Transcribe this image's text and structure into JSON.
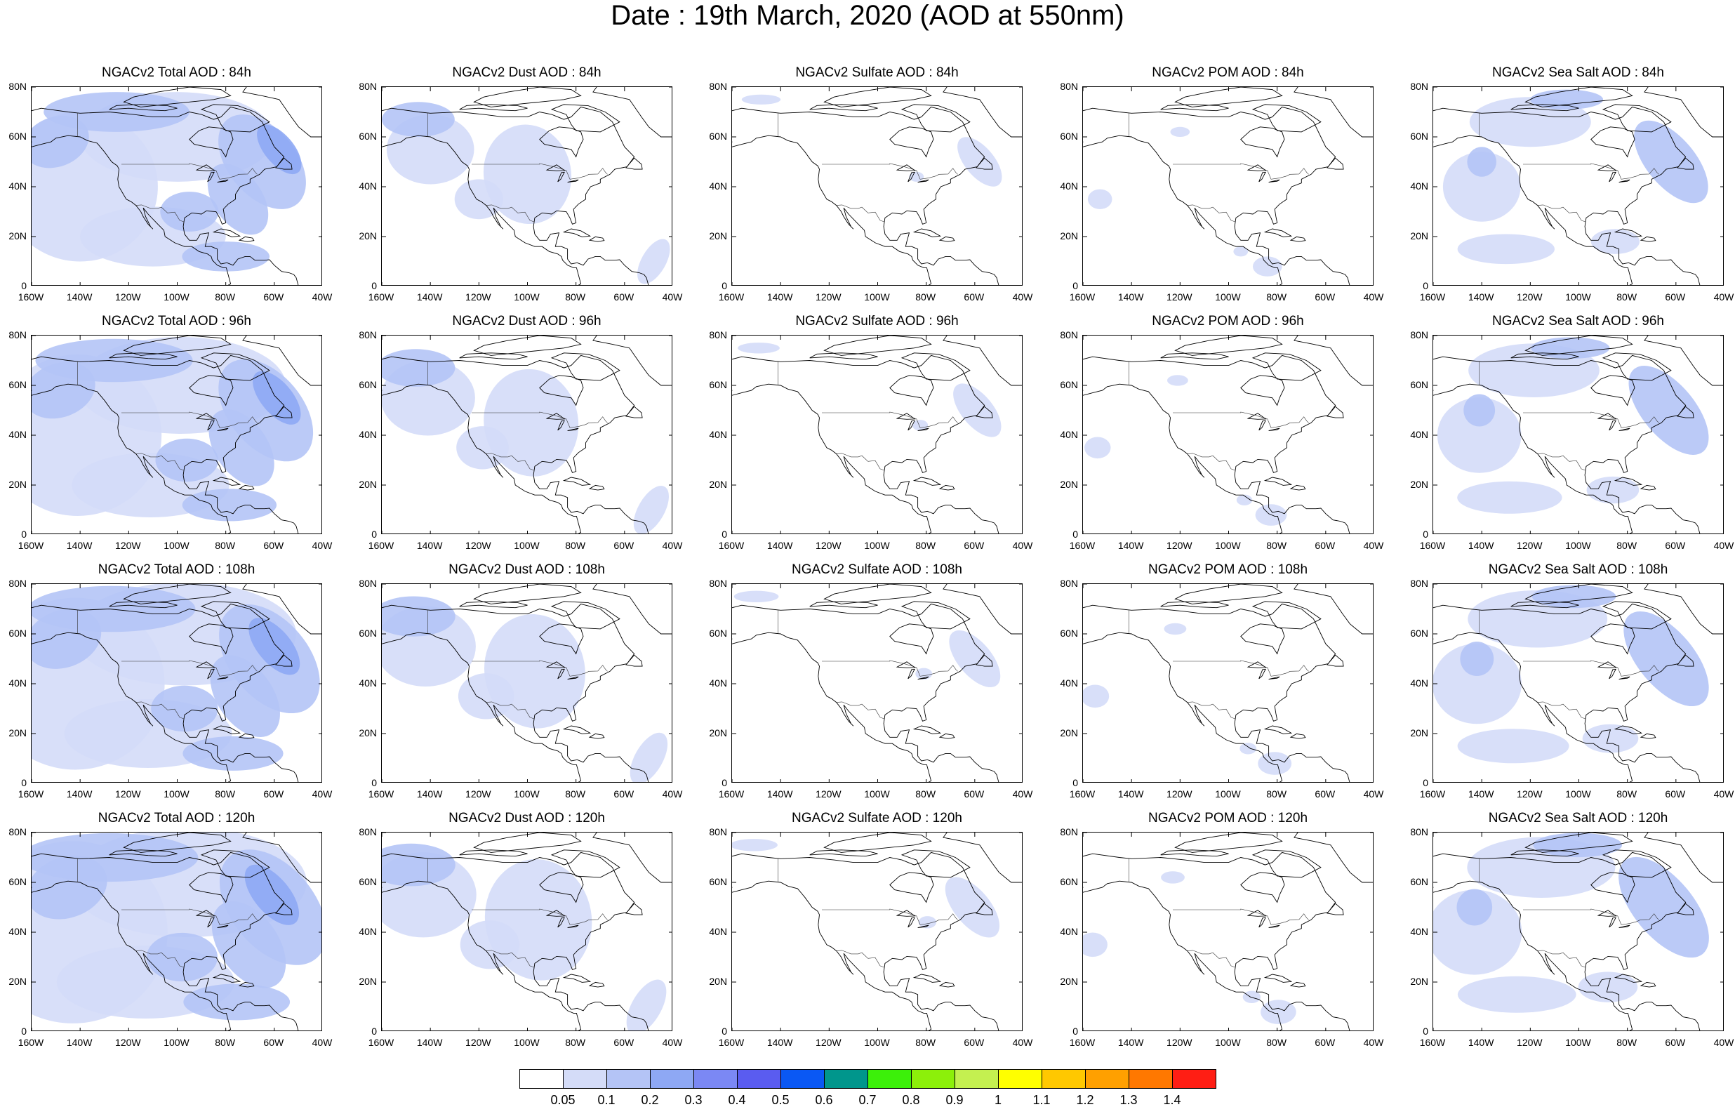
{
  "title": "Date : 19th March, 2020 (AOD at 550nm)",
  "columns": [
    {
      "species": "total",
      "label": "NGACv2 Total AOD"
    },
    {
      "species": "dust",
      "label": "NGACv2 Dust AOD"
    },
    {
      "species": "sulfate",
      "label": "NGACv2 Sulfate AOD"
    },
    {
      "species": "pom",
      "label": "NGACv2 POM AOD"
    },
    {
      "species": "seasalt",
      "label": "NGACv2 Sea Salt AOD"
    }
  ],
  "panel_titles": [
    [
      "NGACv2 Total AOD : 84h",
      "NGACv2 Dust AOD : 84h",
      "NGACv2 Sulfate AOD : 84h",
      "NGACv2 POM AOD : 84h",
      "NGACv2 Sea Salt AOD : 84h"
    ],
    [
      "NGACv2 Total AOD : 96h",
      "NGACv2 Dust AOD : 96h",
      "NGACv2 Sulfate AOD : 96h",
      "NGACv2 POM AOD : 96h",
      "NGACv2 Sea Salt AOD : 96h"
    ],
    [
      "NGACv2 Total AOD : 108h",
      "NGACv2 Dust AOD : 108h",
      "NGACv2 Sulfate AOD : 108h",
      "NGACv2 POM AOD : 108h",
      "NGACv2 Sea Salt AOD : 108h"
    ],
    [
      "NGACv2 Total AOD : 120h",
      "NGACv2 Dust AOD : 120h",
      "NGACv2 Sulfate AOD : 120h",
      "NGACv2 POM AOD : 120h",
      "NGACv2 Sea Salt  AOD : 120h"
    ]
  ],
  "forecast_hours": [
    "84h",
    "96h",
    "108h",
    "120h"
  ],
  "lat_ticks": [
    "80N",
    "60N",
    "40N",
    "20N",
    "0"
  ],
  "lon_ticks": [
    "160W",
    "140W",
    "120W",
    "100W",
    "80W",
    "60W",
    "40W"
  ],
  "map_extent": {
    "lon": [
      -160,
      -40
    ],
    "lat": [
      0,
      80
    ]
  },
  "colorbar": {
    "labels": [
      "0.05",
      "0.1",
      "0.2",
      "0.3",
      "0.4",
      "0.5",
      "0.6",
      "0.7",
      "0.8",
      "0.9",
      "1",
      "1.1",
      "1.2",
      "1.3",
      "1.4"
    ],
    "colors": [
      "#ffffff",
      "#d4dcf8",
      "#b4c4f6",
      "#8ea8f4",
      "#7b88f4",
      "#5a5cf0",
      "#0a58f4",
      "#00968c",
      "#3cf00a",
      "#8cf00a",
      "#c4f050",
      "#ffff00",
      "#ffc800",
      "#ffa000",
      "#ff7800",
      "#ff1e14"
    ]
  },
  "colors": {
    "light": "#d4dcf8",
    "medium": "#b4c4f6",
    "dark": "#8ea8f4",
    "darker": "#7b88f4",
    "coast": "#000000"
  }
}
